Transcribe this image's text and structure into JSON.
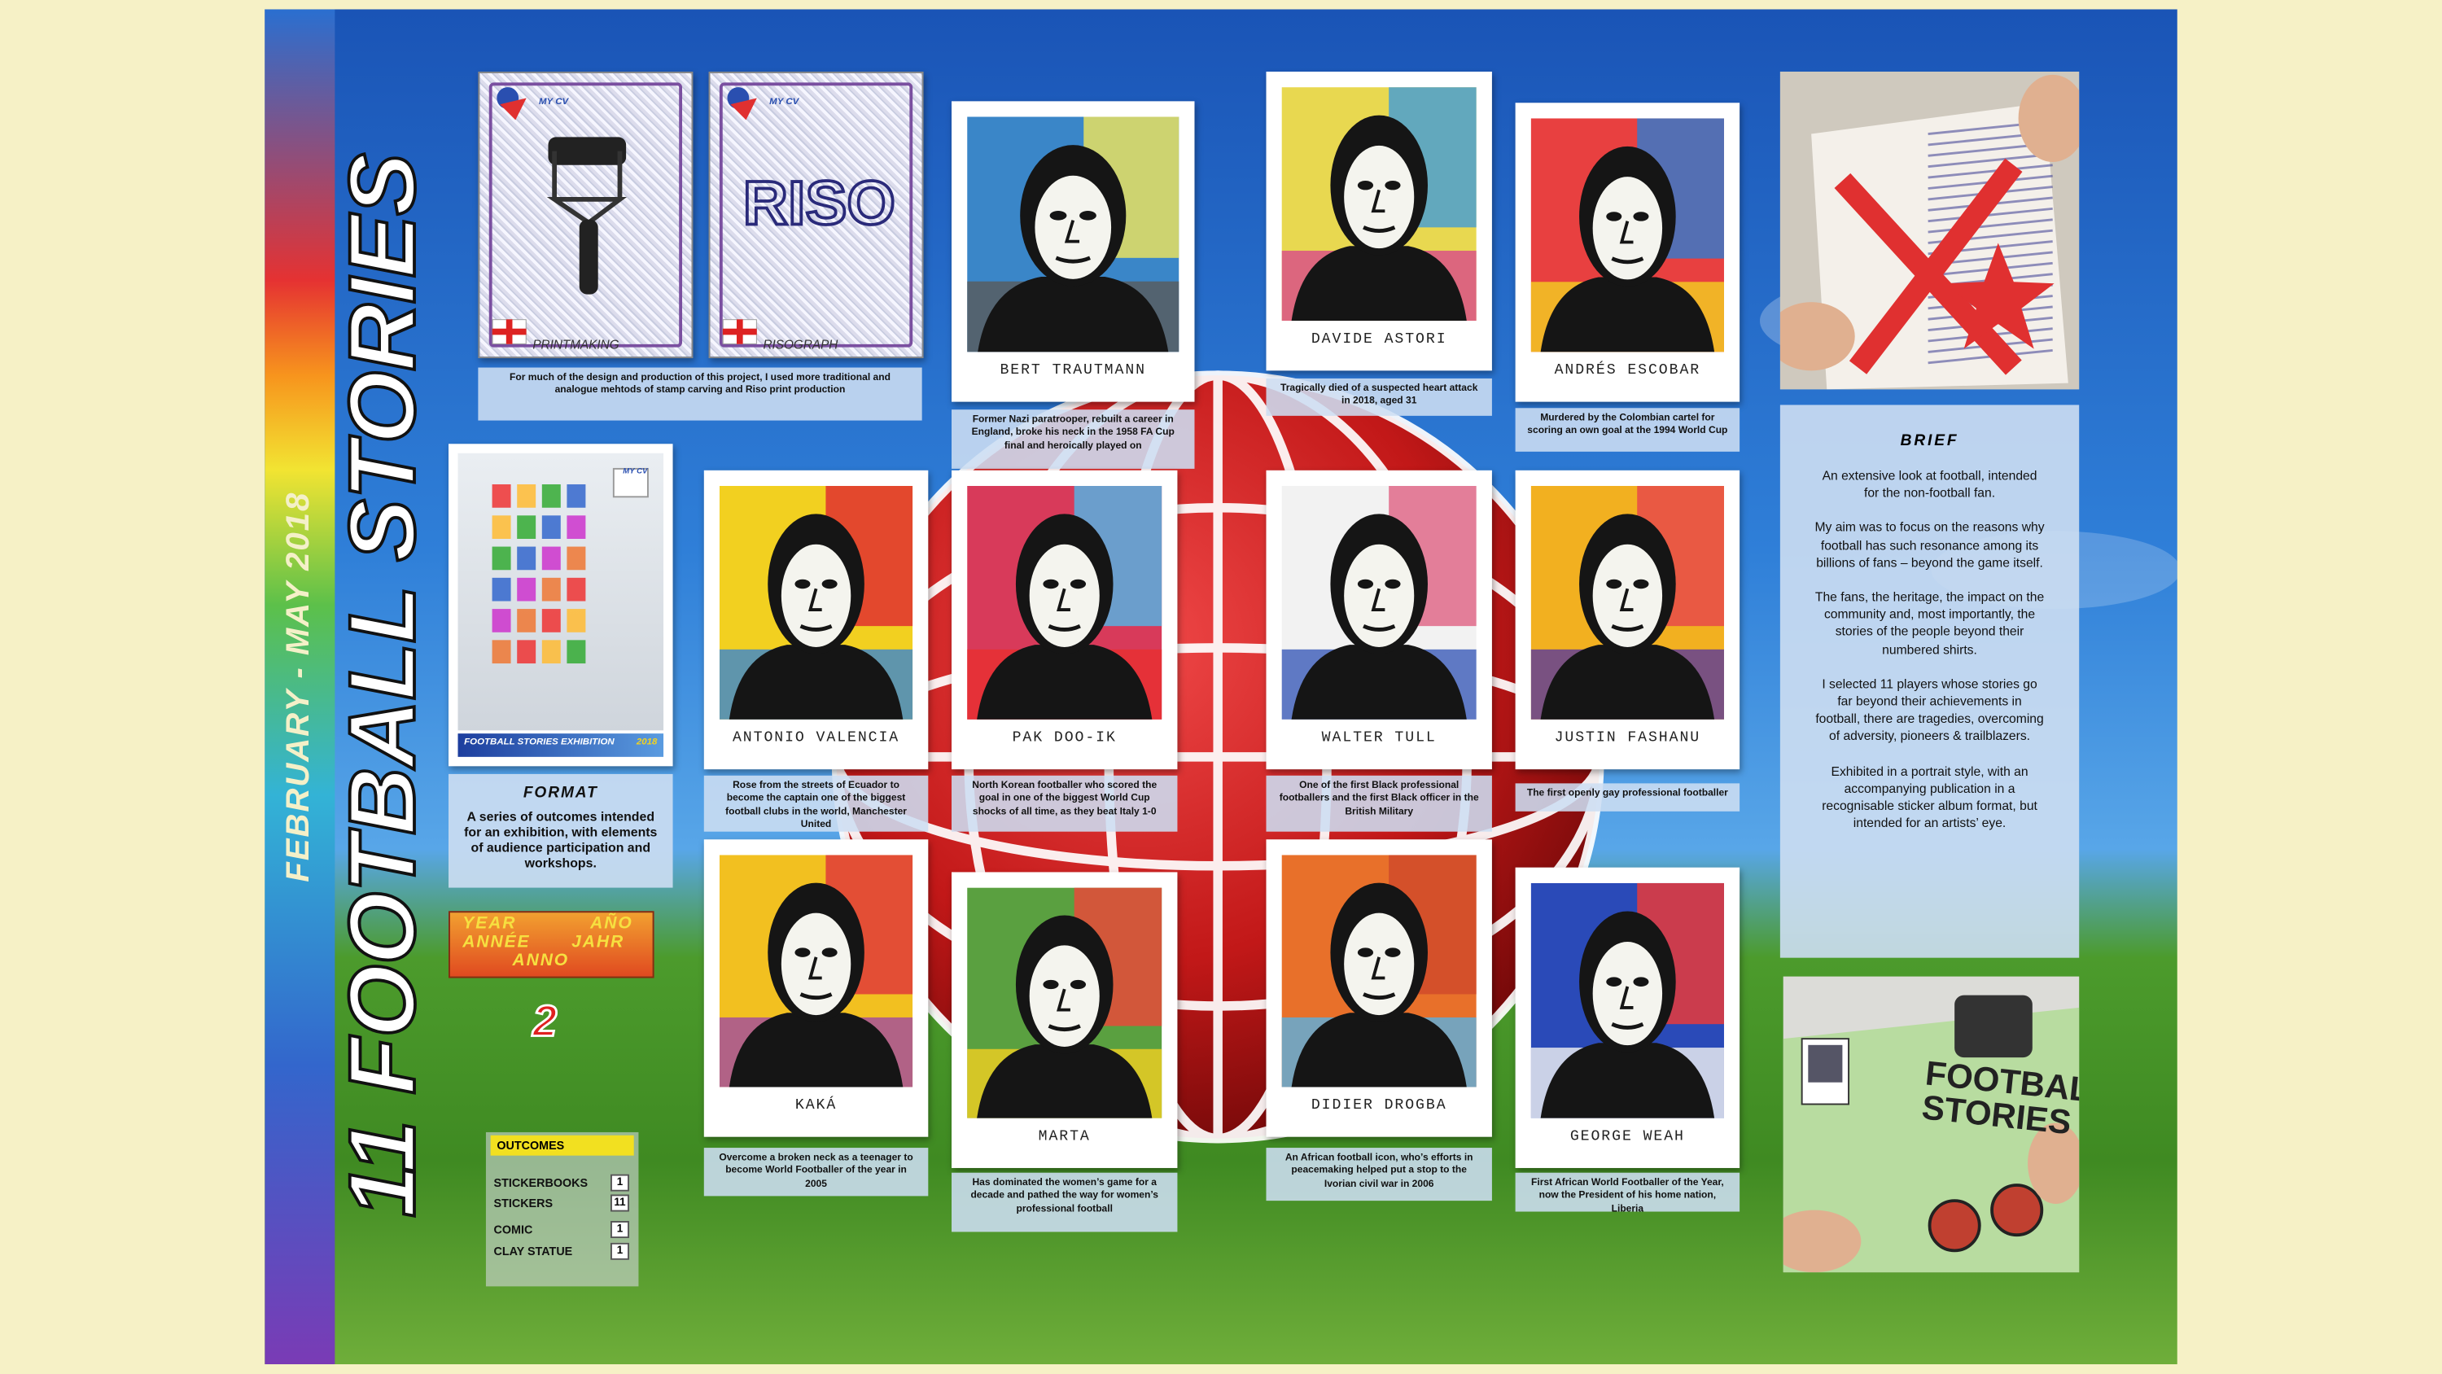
{
  "title": "11 FOOTBALL STORIES",
  "subtitle": "FEBRUARY - MAY 2018",
  "stickers": [
    {
      "badge": "MY CV",
      "label": "PRINTMAKING"
    },
    {
      "badge": "MY CV",
      "logo": "RISO",
      "label": "RISOGRAPH"
    }
  ],
  "stickers_caption": "For much of the design and production of this project, I used more traditional and analogue mehtods of stamp carving and Riso print production",
  "exhibition": {
    "badge": "MY CV",
    "caption": "FOOTBALL STORIES EXHIBITION",
    "year": "2018"
  },
  "format": {
    "heading": "FORMAT",
    "text": "A series of outcomes intended for an exhibition, with elements of audience participation and workshops."
  },
  "year_badge": {
    "words": [
      "YEAR",
      "AÑO",
      "ANNÉE",
      "JAHR",
      "ANNO"
    ],
    "number": "2"
  },
  "outcomes": {
    "heading": "OUTCOMES",
    "rows": [
      [
        "STICKERBOOKS",
        "1"
      ],
      [
        "STICKERS",
        "11"
      ],
      [
        "COMIC",
        "1"
      ],
      [
        "CLAY STATUE",
        "1"
      ]
    ]
  },
  "players": [
    {
      "name": "BERT TRAUTMANN",
      "caption": "Former Nazi paratrooper, rebuilt a career in England, broke his neck in the 1958 FA Cup final and heroically played on"
    },
    {
      "name": "DAVIDE ASTORI",
      "caption": "Tragically died of a suspected heart attack in 2018, aged 31"
    },
    {
      "name": "ANDRÉS ESCOBAR",
      "caption": "Murdered by the Colombian cartel for scoring an own goal at the 1994 World Cup"
    },
    {
      "name": "ANTONIO VALENCIA",
      "caption": "Rose from the streets of Ecuador to become the captain one of the biggest football clubs in the world, Manchester United"
    },
    {
      "name": "PAK DOO-IK",
      "caption": "North Korean footballer who scored the goal in one of the biggest World Cup shocks of all time, as they beat Italy 1-0"
    },
    {
      "name": "WALTER TULL",
      "caption": "One of the first Black professional footballers and the first Black officer in the British Military"
    },
    {
      "name": "JUSTIN FASHANU",
      "caption": "The first openly gay professional footballer"
    },
    {
      "name": "KAKÁ",
      "caption": "Overcome a broken neck as a teenager to become World Footballer of the year in 2005"
    },
    {
      "name": "MARTA",
      "caption": "Has dominated the women’s game for a decade and pathed the way for women’s professional football"
    },
    {
      "name": "DIDIER DROGBA",
      "caption": "An African football icon, who’s efforts in peacemaking helped put a stop to the Ivorian civil war in 2006"
    },
    {
      "name": "GEORGE WEAH",
      "caption": "First African World Footballer of the Year, now the President of his home nation, Liberia"
    }
  ],
  "brief": {
    "heading": "BRIEF",
    "paragraphs": [
      "An extensive look at football, intended for the non-football fan.",
      "My aim was to focus on the reasons why football has such resonance among its billions of fans – beyond the game itself.",
      "The fans, the heritage, the impact on the community and, most importantly, the stories of the people beyond their numbered shirts.",
      "I selected 11 players whose stories go far beyond their achievements in football, there are tragedies, overcoming of adversity, pioneers & trailblazers.",
      "Exhibited in a portrait style, with an accompanying publication in a recognisable sticker album format, but intended for an artists’ eye."
    ]
  },
  "workshop_photo_text": "FOOTBALL STORIES"
}
